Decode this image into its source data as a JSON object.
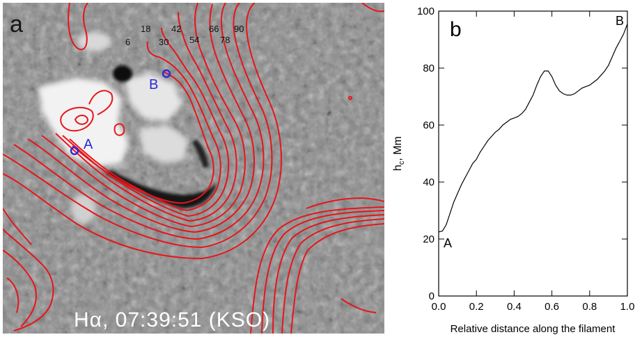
{
  "panel_a": {
    "label": "a",
    "caption": "Hα, 07:39:51 (KSO)",
    "point_a": "A",
    "point_b": "B",
    "contour_labels": [
      "6",
      "18",
      "30",
      "42",
      "54",
      "66",
      "78",
      "90"
    ],
    "contour_color": "#e8141a",
    "marker_color": "#2b2bd6"
  },
  "chart_data": {
    "type": "line",
    "panel_label": "b",
    "title": "",
    "xlabel": "Relative distance along the filament",
    "ylabel": "h",
    "ylabel_sub": "c",
    "ylabel_suffix": ", Mm",
    "xlim": [
      0.0,
      1.0
    ],
    "ylim": [
      0,
      100
    ],
    "xticks": [
      "0.0",
      "0.2",
      "0.4",
      "0.6",
      "0.8",
      "1.0"
    ],
    "yticks": [
      "0",
      "20",
      "40",
      "60",
      "80",
      "100"
    ],
    "start_label": "A",
    "end_label": "B",
    "grid": false,
    "series": [
      {
        "x": [
          0.0,
          0.02,
          0.04,
          0.06,
          0.08,
          0.1,
          0.12,
          0.14,
          0.16,
          0.18,
          0.2,
          0.22,
          0.24,
          0.26,
          0.28,
          0.3,
          0.32,
          0.34,
          0.36,
          0.38,
          0.4,
          0.42,
          0.44,
          0.46,
          0.48,
          0.5,
          0.52,
          0.54,
          0.56,
          0.58,
          0.6,
          0.62,
          0.64,
          0.66,
          0.68,
          0.7,
          0.72,
          0.74,
          0.76,
          0.78,
          0.8,
          0.82,
          0.84,
          0.86,
          0.88,
          0.9,
          0.92,
          0.94,
          0.96,
          0.98,
          1.0
        ],
        "y": [
          22.5,
          22.8,
          25,
          29,
          33,
          36,
          39,
          41.5,
          44,
          46.5,
          48,
          50.5,
          52.5,
          54.5,
          56,
          57.5,
          58.5,
          60,
          61,
          62,
          62.5,
          63,
          64,
          65.5,
          68,
          70.5,
          74,
          77,
          79,
          79,
          77,
          74,
          72,
          71,
          70.5,
          70.5,
          71,
          72,
          73,
          73.5,
          74,
          75,
          76,
          77.5,
          79,
          81,
          84,
          87,
          89.5,
          92,
          95.5
        ]
      }
    ]
  }
}
